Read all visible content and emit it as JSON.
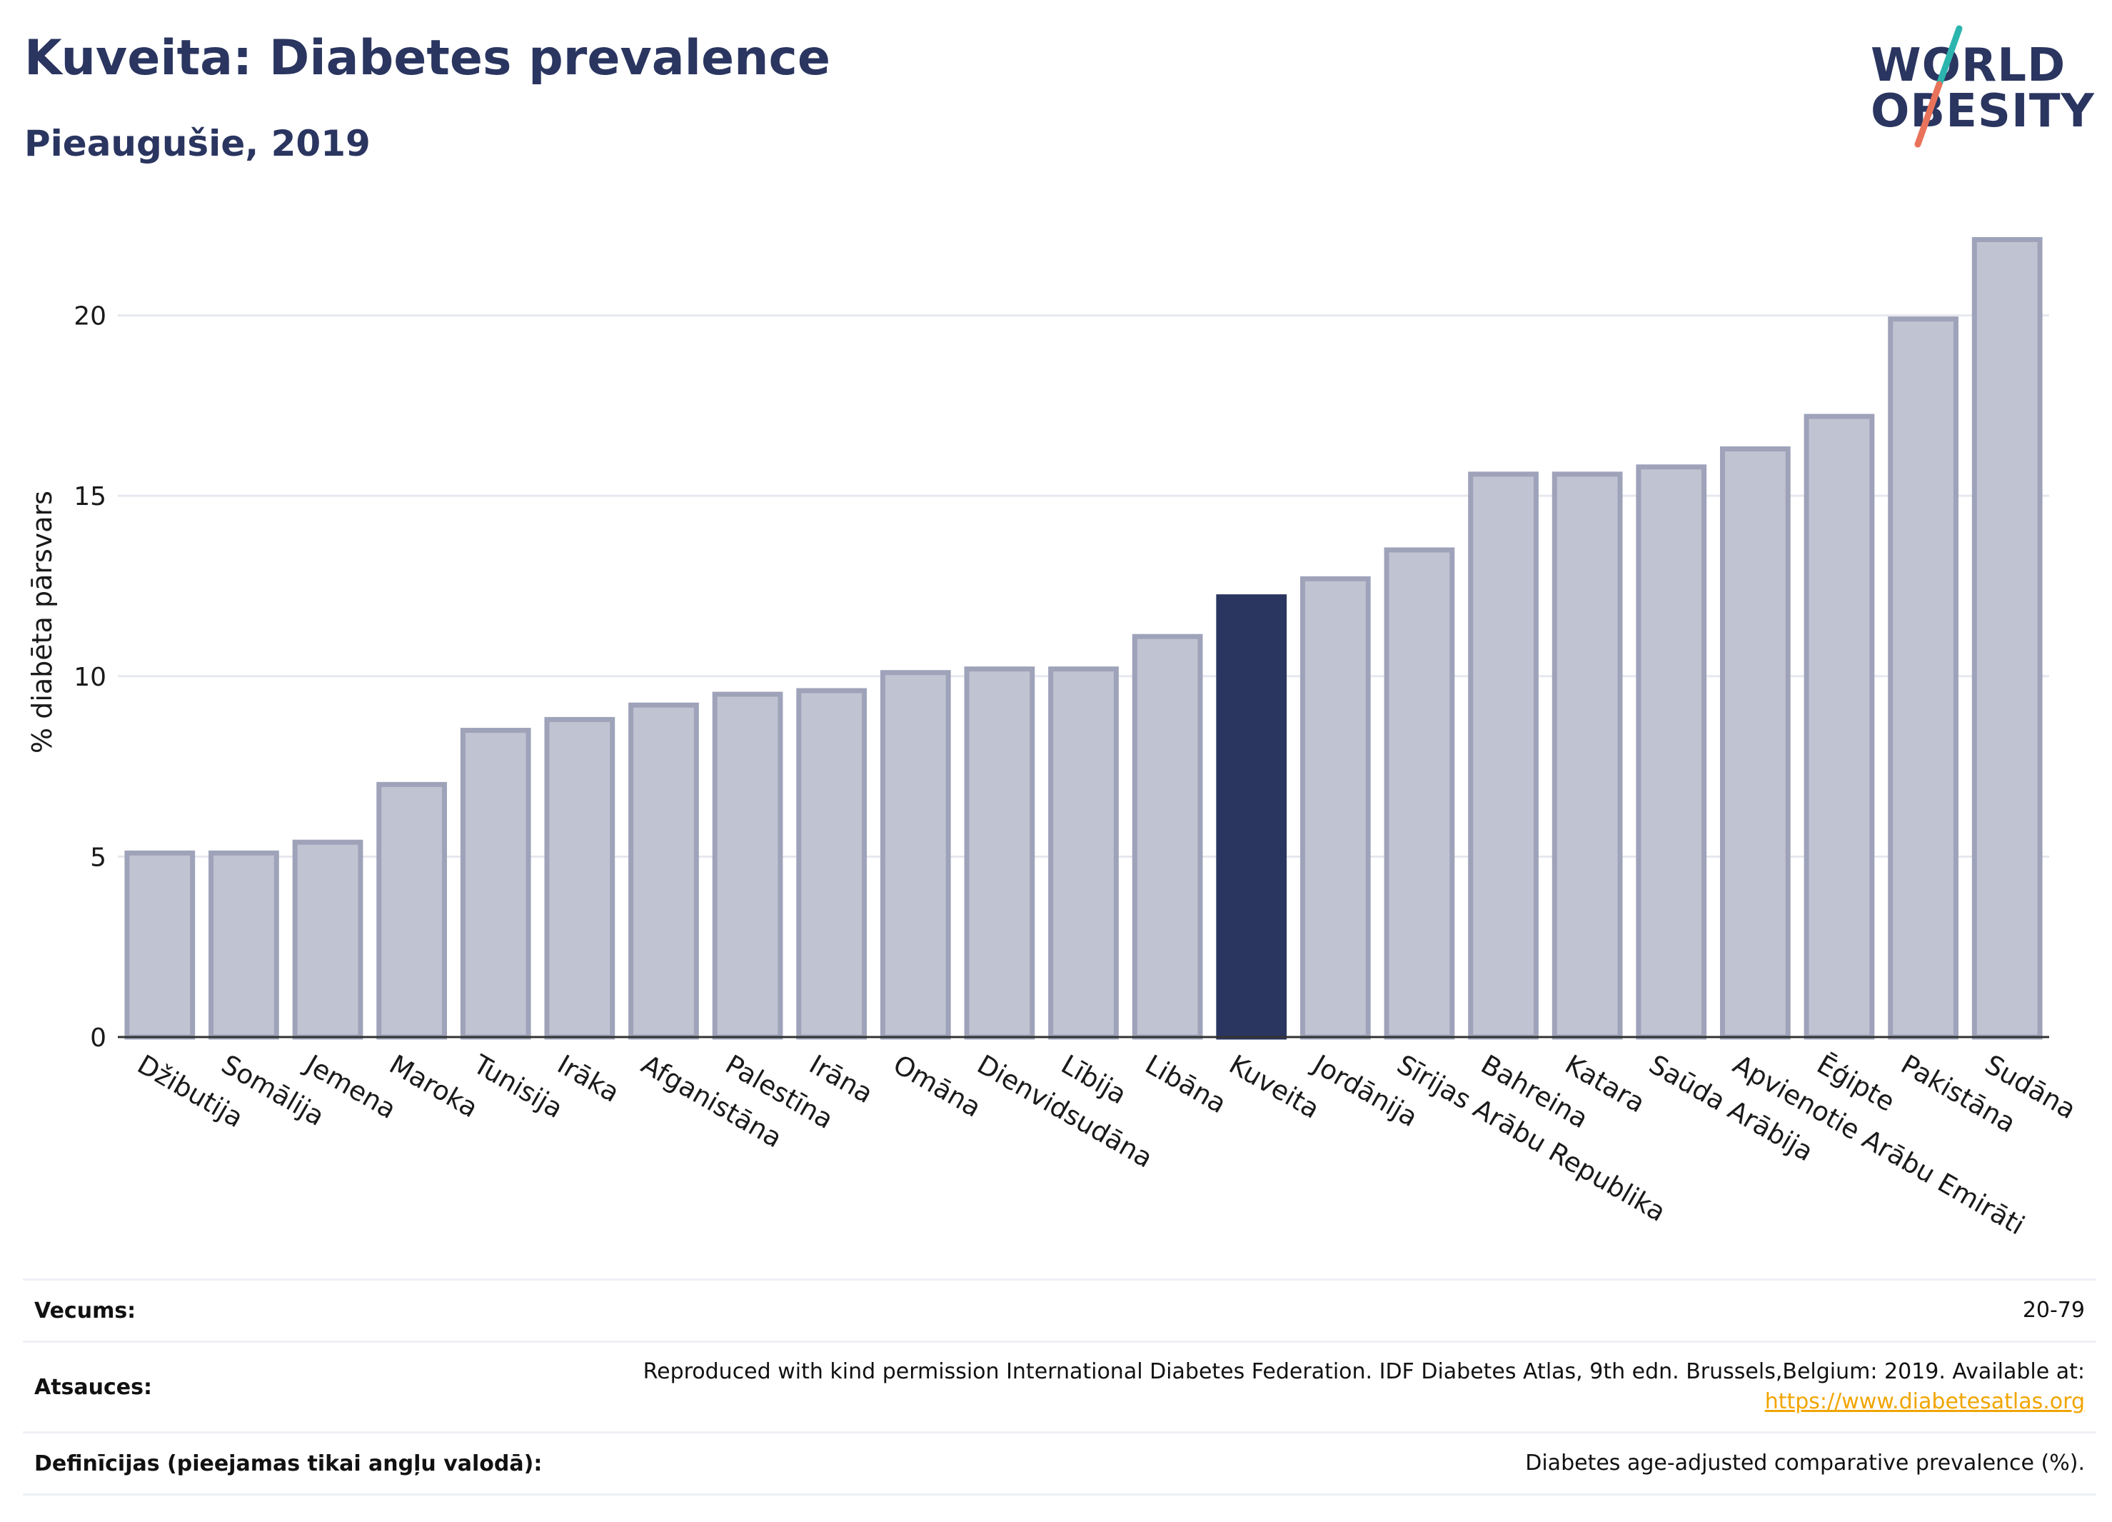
{
  "header": {
    "title": "Kuveita: Diabetes prevalence",
    "subtitle": "Pieaugušie, 2019"
  },
  "logo": {
    "line1": "WORLD",
    "line2": "OBESITY",
    "colors": {
      "text": "#2a3560",
      "slash_top": "#2cb5ae",
      "slash_bottom": "#e8735a"
    }
  },
  "chart_data": {
    "type": "bar",
    "categories": [
      "Džibutija",
      "Somālija",
      "Jemena",
      "Maroka",
      "Tunisija",
      "Irāka",
      "Afganistāna",
      "Palestīna",
      "Irāna",
      "Omāna",
      "Dienvidsudāna",
      "Lībija",
      "Libāna",
      "Kuveita",
      "Jordānija",
      "Sīrijas Arābu Republika",
      "Bahreina",
      "Katara",
      "Saūda Arābija",
      "Apvienotie Arābu Emirāti",
      "Ēģipte",
      "Pakistāna",
      "Sudāna"
    ],
    "values": [
      5.1,
      5.1,
      5.4,
      7.0,
      8.5,
      8.8,
      9.2,
      9.5,
      9.6,
      10.1,
      10.2,
      10.2,
      11.1,
      12.2,
      12.7,
      13.5,
      15.6,
      15.6,
      15.8,
      16.3,
      17.2,
      19.9,
      22.1
    ],
    "highlight": "Kuveita",
    "ylabel": "% diabēta pārsvars",
    "ylim": [
      0,
      23
    ],
    "yticks": [
      0,
      5,
      10,
      15,
      20
    ],
    "grid": true,
    "colors": {
      "bar": "#c0c3d1",
      "bar_edge": "#9ea3ba",
      "highlight": "#2a3560",
      "grid": "#e6e8ee",
      "axis": "#333333"
    }
  },
  "footer": {
    "rows": [
      {
        "label": "Vecums:",
        "value": "20-79"
      },
      {
        "label": "Atsauces:",
        "value": "Reproduced with kind permission International Diabetes Federation. IDF Diabetes Atlas, 9th edn. Brussels,Belgium: 2019. Available at:",
        "link": "https://www.diabetesatlas.org"
      },
      {
        "label": "Definīcijas (pieejamas tikai angļu valodā):",
        "value": "Diabetes age-adjusted comparative prevalence (%)."
      }
    ]
  }
}
